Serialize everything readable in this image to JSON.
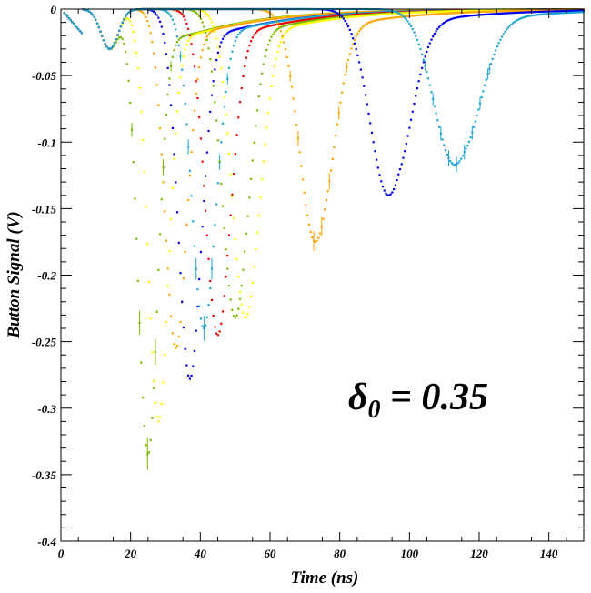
{
  "chart_data": {
    "type": "scatter",
    "title": "",
    "xlabel": "Time (ns)",
    "ylabel": "Button Signal (V)",
    "xlim": [
      0,
      150
    ],
    "ylim": [
      -0.4,
      0
    ],
    "x_ticks": [
      0,
      20,
      40,
      60,
      80,
      100,
      120,
      140
    ],
    "y_ticks": [
      0,
      -0.05,
      -0.1,
      -0.15,
      -0.2,
      -0.25,
      -0.3,
      -0.35,
      -0.4
    ],
    "x_tick_labels": [
      "0",
      "20",
      "40",
      "60",
      "80",
      "100",
      "120",
      "140"
    ],
    "y_tick_labels": [
      "0",
      "-0.05",
      "-0.1",
      "-0.15",
      "-0.2",
      "-0.25",
      "-0.3",
      "-0.35",
      "-0.4"
    ],
    "grid": false,
    "legend": "none",
    "annotation": {
      "symbol": "δ",
      "subscript": "0",
      "text": " = 0.35"
    },
    "series": [
      {
        "color": "#7ab800",
        "peak_time": 25,
        "peak_value": -0.335
      },
      {
        "color": "#ffff00",
        "peak_time": 28,
        "peak_value": -0.31
      },
      {
        "color": "#ffa500",
        "peak_time": 33,
        "peak_value": -0.255
      },
      {
        "color": "#0000ee",
        "peak_time": 37,
        "peak_value": -0.278
      },
      {
        "color": "#1fa5d2",
        "peak_time": 41,
        "peak_value": -0.24
      },
      {
        "color": "#ee0000",
        "peak_time": 45,
        "peak_value": -0.245
      },
      {
        "color": "#7ab800",
        "peak_time": 50,
        "peak_value": -0.232
      },
      {
        "color": "#ffff00",
        "peak_time": 53,
        "peak_value": -0.232
      },
      {
        "color": "#ffa500",
        "peak_time": 73,
        "peak_value": -0.175
      },
      {
        "color": "#0000ee",
        "peak_time": 94,
        "peak_value": -0.14
      },
      {
        "color": "#1fa5d2",
        "peak_time": 113,
        "peak_value": -0.117
      }
    ]
  }
}
